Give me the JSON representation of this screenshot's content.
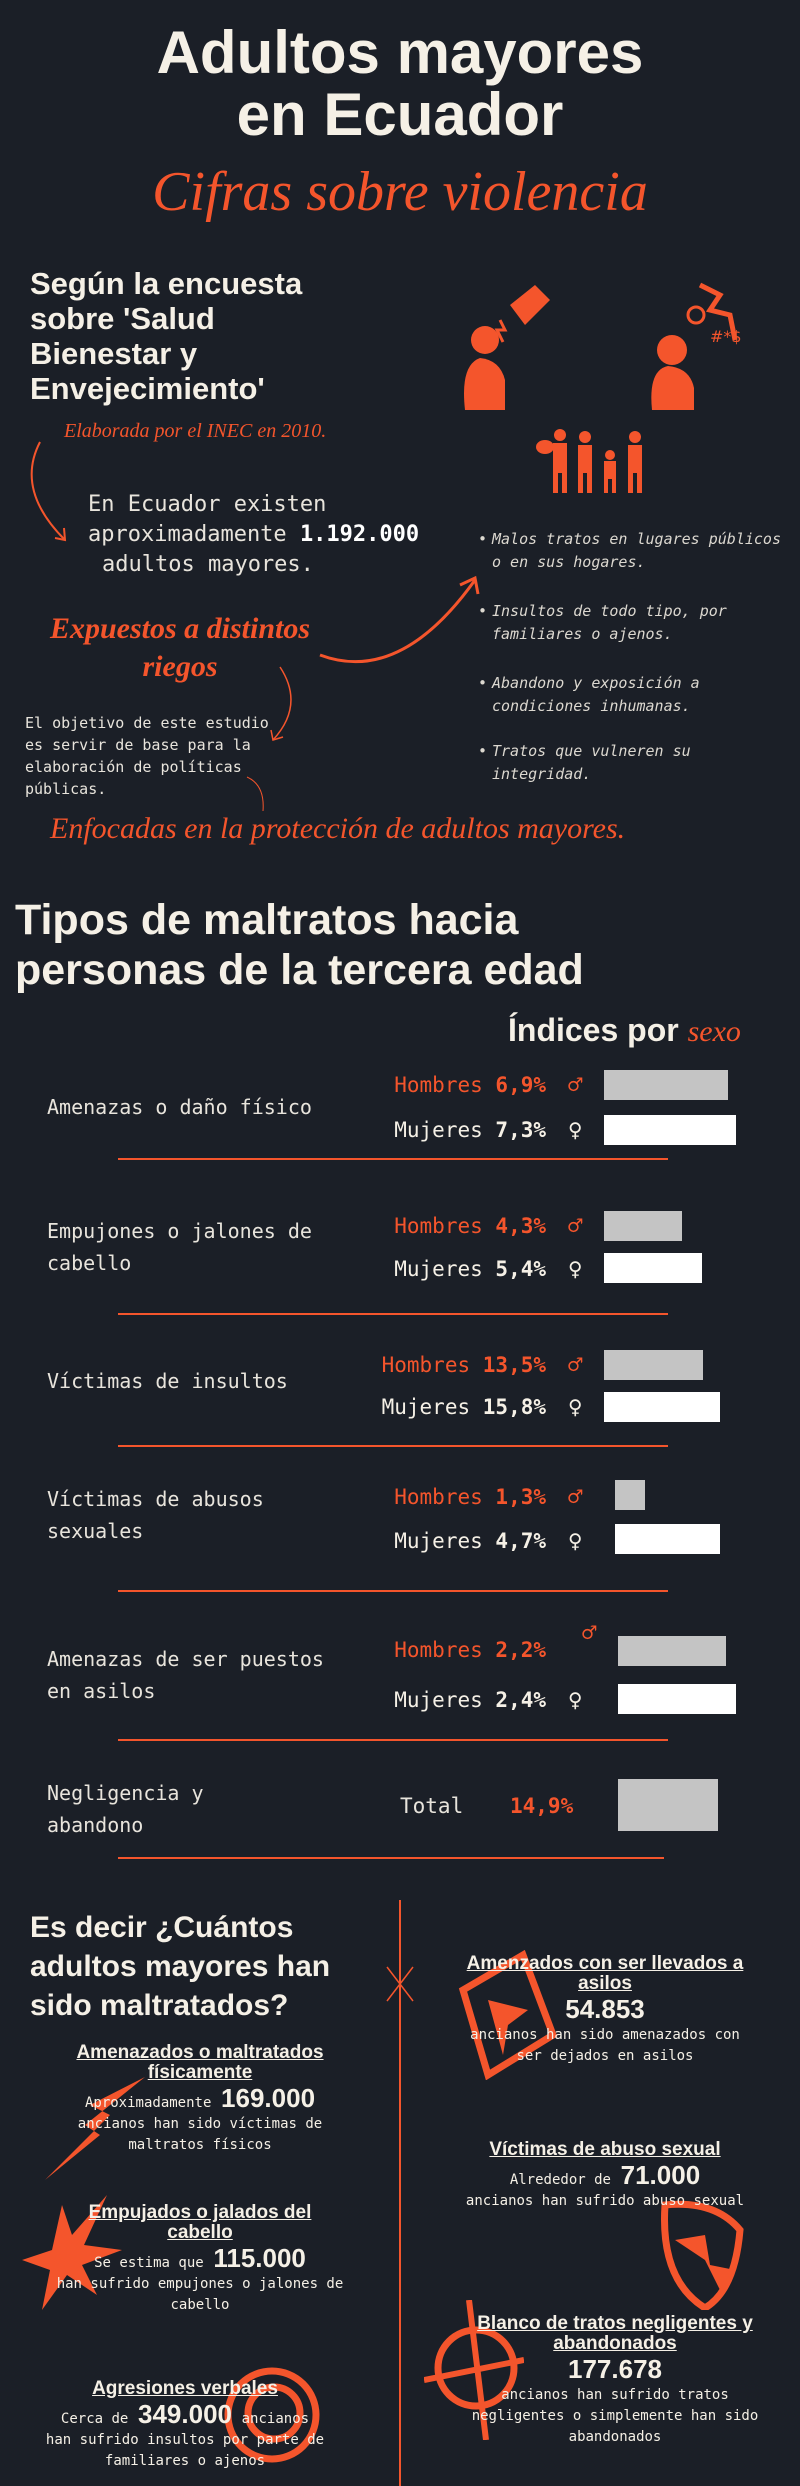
{
  "header": {
    "title_line1": "Adultos mayores",
    "title_line2": "en Ecuador",
    "subtitle": "Cifras sobre violencia"
  },
  "intro": {
    "survey_heading": "Según la encuesta sobre 'Salud Bienestar y Envejecimiento'",
    "source_note": "Elaborada por el INEC en 2010.",
    "population_text_1": "En Ecuador existen",
    "population_text_2": "aproximadamente",
    "population_value": "1.192.000",
    "population_text_3": "adultos mayores.",
    "exposed_title_1": "Expuestos a distintos",
    "exposed_title_2": "riegos",
    "objective_text": "El objetivo de este estudio es servir de base para la elaboración de políticas públicas.",
    "focus_text": "Enfocadas en la protección de adultos mayores.",
    "risks": [
      "Malos tratos en lugares públicos o en sus hogares.",
      "Insultos de todo tipo, por familiares o ajenos.",
      "Abandono y exposición a condiciones inhumanas.",
      "Tratos que vulneren su integridad."
    ]
  },
  "types": {
    "heading": "Tipos de maltratos hacia personas de la tercera edad",
    "index_label": "Índices por",
    "index_label_accent": "sexo",
    "men_label": "Hombres",
    "women_label": "Mujeres",
    "total_label": "Total",
    "rows": [
      {
        "label": "Amenazas o daño físico",
        "men": "6,9%",
        "women": "7,3%",
        "men_value": 6.9,
        "women_value": 7.3
      },
      {
        "label": "Empujones o jalones de cabello",
        "men": "4,3%",
        "women": "5,4%",
        "men_value": 4.3,
        "women_value": 5.4
      },
      {
        "label": "Víctimas de insultos",
        "men": "13,5%",
        "women": "15,8%",
        "men_value": 13.5,
        "women_value": 15.8
      },
      {
        "label": "Víctimas de abusos sexuales",
        "men": "1,3%",
        "women": "4,7%",
        "men_value": 1.3,
        "women_value": 4.7
      },
      {
        "label": "Amenazas de ser puestos en asilos",
        "men": "2,2%",
        "women": "2,4%",
        "men_value": 2.2,
        "women_value": 2.4
      },
      {
        "label": "Negligencia y abandono",
        "total": "14,9%",
        "total_value": 14.9
      }
    ],
    "colors": {
      "men": "#c4c4c4",
      "women": "#ffffff",
      "accent": "#f4552c"
    }
  },
  "counts": {
    "heading": "Es decir ¿Cuántos adultos mayores han sido maltratados?",
    "cards": [
      {
        "title": "Amenazados o maltratados físicamente",
        "prefix": "Aproximadamente",
        "value": "169.000",
        "text": "ancianos han sido víctimas de maltratos físicos"
      },
      {
        "title": "Empujados o jalados del cabello",
        "prefix": "Se estima que",
        "value": "115.000",
        "text": "han sufrido empujones o jalones de cabello"
      },
      {
        "title": "Agresiones verbales",
        "prefix": "Cerca de",
        "value": "349.000",
        "suffix": "ancianos",
        "text": "han sufrido insultos por parte de familiares o ajenos"
      },
      {
        "title": "Amenzados con ser llevados a asilos",
        "value": "54.853",
        "text": "ancianos han sido amenazados con ser dejados en asilos"
      },
      {
        "title": "Víctimas de abuso sexual",
        "prefix": "Alrededor de",
        "value": "71.000",
        "text": "ancianos han sufrido abuso sexual"
      },
      {
        "title": "Blanco de tratos negligentes y abandonados",
        "value": "177.678",
        "text": "ancianos han sufrido tratos negligentes o simplemente han sido abandonados"
      }
    ]
  }
}
